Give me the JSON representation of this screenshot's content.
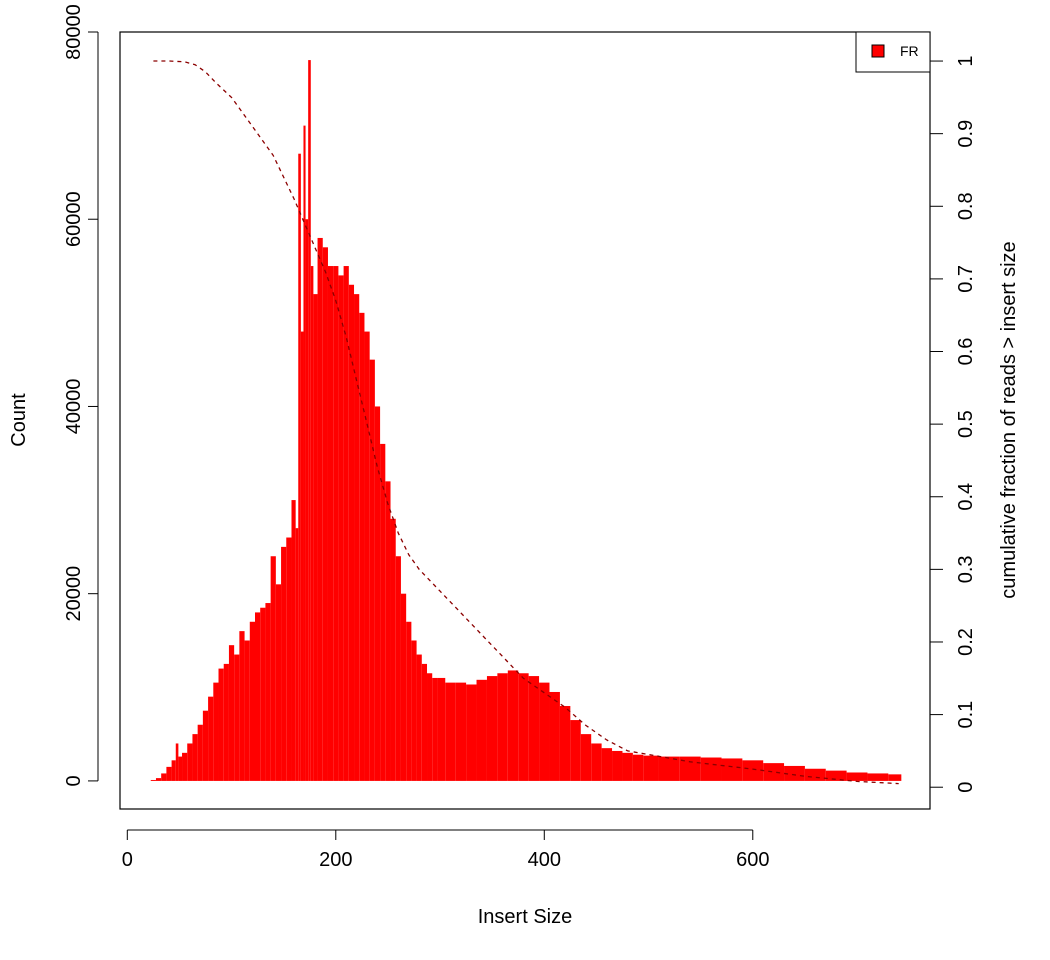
{
  "chart_data": {
    "type": "bar",
    "title": "",
    "xlabel": "Insert Size",
    "ylabel": "Count",
    "y2label": "cumulative fraction of reads > insert size",
    "xlim": [
      -7,
      770
    ],
    "ylim": [
      -3000,
      80000
    ],
    "y2lim": [
      -0.03,
      1.04
    ],
    "x_ticks": [
      "0",
      "200",
      "400",
      "600"
    ],
    "x_tick_values": [
      0,
      200,
      400,
      600
    ],
    "y_ticks": [
      "0",
      "20000",
      "40000",
      "60000",
      "80000"
    ],
    "y_tick_values": [
      0,
      20000,
      40000,
      60000,
      80000
    ],
    "y2_ticks": [
      "0",
      "0.1",
      "0.2",
      "0.3",
      "0.4",
      "0.5",
      "0.6",
      "0.7",
      "0.8",
      "0.9",
      "1"
    ],
    "y2_tick_values": [
      0,
      0.1,
      0.2,
      0.3,
      0.4,
      0.5,
      0.6,
      0.7,
      0.8,
      0.9,
      1
    ],
    "legend": {
      "position": "top-right",
      "entries": [
        {
          "label": "FR",
          "color": "#ff0000"
        }
      ]
    },
    "series": [
      {
        "name": "FR",
        "color": "#ff0000",
        "x": [
          25,
          30,
          35,
          40,
          45,
          48,
          50,
          55,
          60,
          65,
          70,
          75,
          80,
          85,
          90,
          95,
          100,
          105,
          110,
          115,
          120,
          125,
          130,
          135,
          140,
          145,
          150,
          155,
          160,
          163,
          165,
          168,
          170,
          172,
          175,
          177,
          180,
          185,
          190,
          195,
          200,
          205,
          210,
          215,
          220,
          225,
          230,
          235,
          240,
          245,
          250,
          255,
          260,
          265,
          270,
          275,
          280,
          285,
          290,
          295,
          300,
          310,
          320,
          330,
          340,
          350,
          360,
          370,
          380,
          390,
          400,
          410,
          420,
          430,
          440,
          450,
          460,
          470,
          480,
          490,
          500,
          520,
          540,
          560,
          580,
          600,
          620,
          640,
          660,
          680,
          700,
          720,
          740
        ],
        "values": [
          100,
          300,
          800,
          1500,
          2200,
          4000,
          2600,
          3000,
          4000,
          5000,
          6000,
          7500,
          9000,
          10500,
          12000,
          12500,
          14500,
          13500,
          16000,
          15000,
          17000,
          18000,
          18500,
          19000,
          24000,
          21000,
          25000,
          26000,
          30000,
          27000,
          67000,
          48000,
          70000,
          60000,
          77000,
          55000,
          52000,
          58000,
          57000,
          55000,
          55000,
          54000,
          55000,
          53000,
          52000,
          50000,
          48000,
          45000,
          40000,
          36000,
          32000,
          28000,
          24000,
          20000,
          17000,
          15000,
          13500,
          12500,
          11500,
          11000,
          11000,
          10500,
          10500,
          10300,
          10800,
          11200,
          11500,
          11800,
          11500,
          11200,
          10500,
          9500,
          8000,
          6500,
          5000,
          4000,
          3500,
          3200,
          3000,
          2800,
          2700,
          2600,
          2600,
          2500,
          2400,
          2200,
          1900,
          1600,
          1300,
          1100,
          900,
          800,
          700
        ]
      },
      {
        "name": "",
        "axis": "right",
        "style": "dashed",
        "color": "#8b0000",
        "x": [
          25,
          40,
          55,
          65,
          75,
          85,
          100,
          120,
          140,
          160,
          175,
          190,
          200,
          210,
          220,
          230,
          240,
          250,
          260,
          270,
          280,
          300,
          320,
          340,
          360,
          380,
          400,
          420,
          440,
          460,
          480,
          500,
          540,
          600,
          650,
          700,
          740
        ],
        "values": [
          1.0,
          1.0,
          0.999,
          0.995,
          0.985,
          0.97,
          0.95,
          0.91,
          0.87,
          0.81,
          0.76,
          0.71,
          0.67,
          0.62,
          0.56,
          0.5,
          0.44,
          0.39,
          0.35,
          0.32,
          0.3,
          0.27,
          0.24,
          0.21,
          0.18,
          0.15,
          0.13,
          0.11,
          0.085,
          0.065,
          0.05,
          0.045,
          0.035,
          0.025,
          0.015,
          0.008,
          0.005
        ]
      }
    ]
  }
}
